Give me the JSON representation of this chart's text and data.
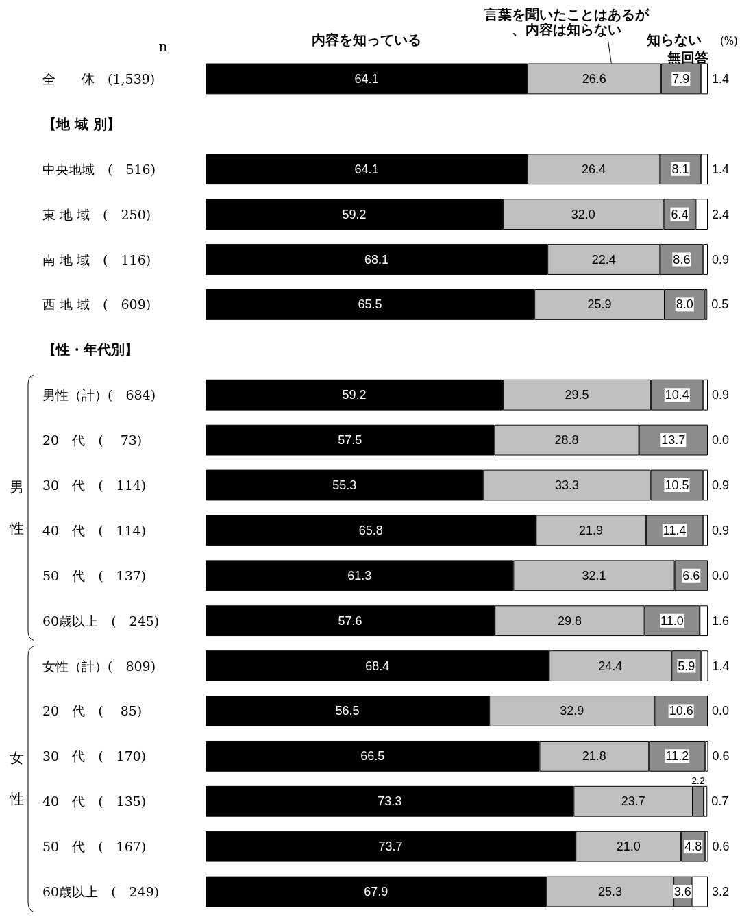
{
  "chart_data": {
    "type": "bar",
    "orientation": "horizontal",
    "stacked": true,
    "legend": "top",
    "categories": [
      "全　　体　(1,539)",
      "【地 域 別】",
      "中央地域　(　516)",
      "東 地 域　(　250)",
      "南 地 域　(　116)",
      "西 地 域　(　609)",
      "【性・年代別】",
      "男性（計）(　684)",
      "20　代　(　 73)",
      "30　代　(　114)",
      "40　代　(　114)",
      "50　代　(　137)",
      "60歳以上　(　245)",
      "女性（計）(　809)",
      "20　代　(　 85)",
      "30　代　(　170)",
      "40　代　(　135)",
      "50　代　(　167)",
      "60歳以上　(　249)"
    ],
    "series": [
      {
        "name": "内容を知っている",
        "color": "#000000",
        "values": [
          64.1,
          null,
          64.1,
          59.2,
          68.1,
          65.5,
          null,
          59.2,
          57.5,
          55.3,
          65.8,
          61.3,
          57.6,
          68.4,
          56.5,
          66.5,
          73.3,
          73.7,
          67.9
        ],
        "value_labels": [
          "64.1",
          null,
          "64.1",
          "59.2",
          "68.1",
          "65.5",
          null,
          "59.2",
          "57.5",
          "55.3",
          "65.8",
          "61.3",
          "57.6",
          "68.4",
          "56.5",
          "66.5",
          "73.3",
          "73.7",
          "67.9"
        ]
      },
      {
        "name": "言葉を聞いたことはあるが、内容は知らない",
        "color": "#c0c0c0",
        "values": [
          26.6,
          null,
          26.4,
          32.0,
          22.4,
          25.9,
          null,
          29.5,
          28.8,
          33.3,
          21.9,
          32.1,
          29.8,
          24.4,
          32.9,
          21.8,
          23.7,
          21.0,
          25.3
        ],
        "value_labels": [
          "26.6",
          null,
          "26.4",
          "32.0",
          "22.4",
          "25.9",
          null,
          "29.5",
          "28.8",
          "33.3",
          "21.9",
          "32.1",
          "29.8",
          "24.4",
          "32.9",
          "21.8",
          "23.7",
          "21.0",
          "25.3"
        ]
      },
      {
        "name": "知らない",
        "color": "#8c8c8c",
        "values": [
          7.9,
          null,
          8.1,
          6.4,
          8.6,
          8.0,
          null,
          10.4,
          13.7,
          10.5,
          11.4,
          6.6,
          11.0,
          5.9,
          10.6,
          11.2,
          2.2,
          4.8,
          3.6
        ],
        "value_labels": [
          "7.9",
          null,
          "8.1",
          "6.4",
          "8.6",
          "8.0",
          null,
          "10.4",
          "13.7",
          "10.5",
          "11.4",
          "6.6",
          "11.0",
          "5.9",
          "10.6",
          "11.2",
          "2.2",
          "4.8",
          "3.6"
        ]
      },
      {
        "name": "無回答",
        "color": "#ffffff",
        "values": [
          1.4,
          null,
          1.4,
          2.4,
          0.9,
          0.5,
          null,
          0.9,
          0.0,
          0.9,
          0.9,
          0.0,
          1.6,
          1.4,
          0.0,
          0.6,
          0.7,
          0.6,
          3.2
        ],
        "value_labels": [
          "1.4",
          null,
          "1.4",
          "2.4",
          "0.9",
          "0.5",
          null,
          "0.9",
          "0.0",
          "0.9",
          "0.9",
          "0.0",
          "1.6",
          "1.4",
          "0.0",
          "0.6",
          "0.7",
          "0.6",
          "3.2"
        ]
      }
    ],
    "annotations": [
      "n",
      "(%)",
      "男性",
      "女性"
    ]
  }
}
